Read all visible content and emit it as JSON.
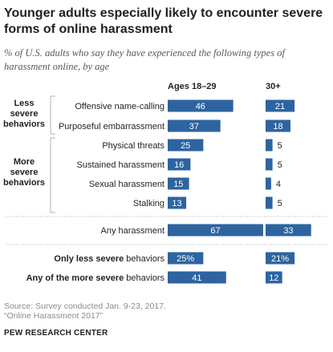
{
  "title": "Younger adults especially likely to encounter severe forms of online harassment",
  "subtitle": "% of U.S. adults who say they have experienced the following types of harassment online, by age",
  "chart_data": {
    "type": "bar",
    "columns": [
      "Ages 18–29",
      "30+"
    ],
    "groups": [
      {
        "label": [
          "Less",
          "severe",
          "behaviors"
        ],
        "rows": [
          0,
          1
        ]
      },
      {
        "label": [
          "More",
          "severe",
          "behaviors"
        ],
        "rows": [
          2,
          3,
          4,
          5
        ]
      }
    ],
    "rows": [
      {
        "label": "Offensive name-calling",
        "values": [
          46,
          21
        ],
        "labels": [
          "46",
          "21"
        ]
      },
      {
        "label": "Purposeful embarrassment",
        "values": [
          37,
          18
        ],
        "labels": [
          "37",
          "18"
        ]
      },
      {
        "label": "Physical threats",
        "values": [
          25,
          5
        ],
        "labels": [
          "25",
          "5"
        ]
      },
      {
        "label": "Sustained harassment",
        "values": [
          16,
          5
        ],
        "labels": [
          "16",
          "5"
        ]
      },
      {
        "label": "Sexual harassment",
        "values": [
          15,
          4
        ],
        "labels": [
          "15",
          "4"
        ]
      },
      {
        "label": "Stalking",
        "values": [
          13,
          5
        ],
        "labels": [
          "13",
          "5"
        ]
      },
      {
        "label": "Any harassment",
        "values": [
          67,
          33
        ],
        "labels": [
          "67",
          "33"
        ]
      },
      {
        "label_parts": [
          {
            "text": "Only less severe",
            "bold": true
          },
          {
            "text": " behaviors",
            "bold": false
          }
        ],
        "values": [
          25,
          21
        ],
        "labels": [
          "25%",
          "21%"
        ]
      },
      {
        "label_parts": [
          {
            "text": "Any of the more severe",
            "bold": true
          },
          {
            "text": " behaviors",
            "bold": false
          }
        ],
        "values": [
          41,
          12
        ],
        "labels": [
          "41",
          "12"
        ]
      }
    ],
    "bar_color": "#2d64a0",
    "label_color": "#ffffff",
    "outside_label_color": "#231f20"
  },
  "footer": {
    "source": "Source: Survey conducted Jan. 9-23, 2017.",
    "report": "“Online Harassment 2017”",
    "org": "PEW RESEARCH CENTER"
  }
}
